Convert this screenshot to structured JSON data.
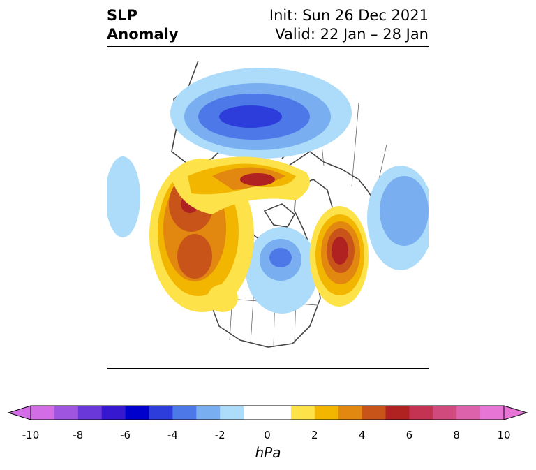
{
  "title": {
    "left_line1": "SLP",
    "left_line2": "Anomaly",
    "right_line1": "Init: Sun 26 Dec 2021",
    "right_line2": "Valid: 22 Jan – 28 Jan"
  },
  "colorbar": {
    "unit_label": "hPa",
    "ticks": [
      "-10",
      "-8",
      "-6",
      "-4",
      "-2",
      "0",
      "2",
      "4",
      "6",
      "8",
      "10"
    ],
    "bins": [
      {
        "from": -10,
        "to": -9,
        "color": "#d26de6"
      },
      {
        "from": -9,
        "to": -8,
        "color": "#9f55e0"
      },
      {
        "from": -8,
        "to": -7,
        "color": "#6a38d8"
      },
      {
        "from": -7,
        "to": -6,
        "color": "#3518d0"
      },
      {
        "from": -6,
        "to": -5,
        "color": "#0000cd"
      },
      {
        "from": -5,
        "to": -4,
        "color": "#2d3ddb"
      },
      {
        "from": -4,
        "to": -3,
        "color": "#4d79e8"
      },
      {
        "from": -3,
        "to": -2,
        "color": "#79aef1"
      },
      {
        "from": -2,
        "to": -1,
        "color": "#acdcfa"
      },
      {
        "from": -1,
        "to": 1,
        "color": "#ffffff"
      },
      {
        "from": 1,
        "to": 2,
        "color": "#fde24a"
      },
      {
        "from": 2,
        "to": 3,
        "color": "#f2b600"
      },
      {
        "from": 3,
        "to": 4,
        "color": "#e2870f"
      },
      {
        "from": 4,
        "to": 5,
        "color": "#c9541a"
      },
      {
        "from": 5,
        "to": 6,
        "color": "#b02122"
      },
      {
        "from": 6,
        "to": 7,
        "color": "#c43452"
      },
      {
        "from": 7,
        "to": 8,
        "color": "#d04a7e"
      },
      {
        "from": 8,
        "to": 9,
        "color": "#dc62ab"
      },
      {
        "from": 9,
        "to": 10,
        "color": "#e675d6"
      }
    ],
    "under_color": "#d26de6",
    "over_color": "#e675d6"
  },
  "map": {
    "projection": "polar-stereographic",
    "field": "sea level pressure anomaly",
    "features": [
      {
        "name": "europe-negative-anomaly",
        "sign": "negative",
        "peak_hpa": -6
      },
      {
        "name": "alaska-positive-anomaly",
        "sign": "positive",
        "peak_hpa": 6
      },
      {
        "name": "north-pacific-positive-anomaly",
        "sign": "positive",
        "peak_hpa": 5
      },
      {
        "name": "siberia-arctic-positive-ridge",
        "sign": "positive",
        "peak_hpa": 6
      },
      {
        "name": "north-atlantic-positive-anomaly",
        "sign": "positive",
        "peak_hpa": 6
      },
      {
        "name": "hudson-bay-negative-anomaly",
        "sign": "negative",
        "peak_hpa": -4
      },
      {
        "name": "east-asia-negative-anomaly",
        "sign": "negative",
        "peak_hpa": -3
      },
      {
        "name": "central-pacific-negative-anomaly",
        "sign": "negative",
        "peak_hpa": -2
      }
    ]
  }
}
